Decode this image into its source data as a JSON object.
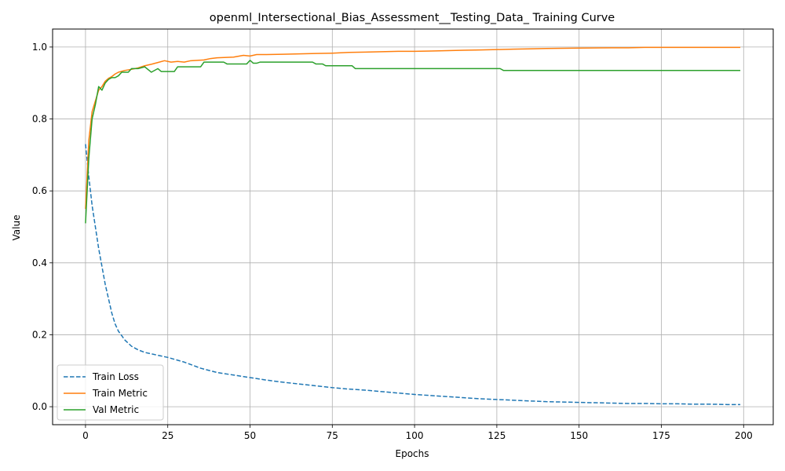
{
  "chart_data": {
    "type": "line",
    "title": "openml_Intersectional_Bias_Assessment__Testing_Data_ Training Curve",
    "xlabel": "Epochs",
    "ylabel": "Value",
    "xlim": [
      -10,
      209
    ],
    "ylim": [
      -0.05,
      1.05
    ],
    "xticks": [
      0,
      25,
      50,
      75,
      100,
      125,
      150,
      175,
      200
    ],
    "yticks": [
      0.0,
      0.2,
      0.4,
      0.6,
      0.8,
      1.0
    ],
    "grid": true,
    "legend_position": "lower-left",
    "series": [
      {
        "name": "Train Loss",
        "color": "#1f77b4",
        "dash": "dashed",
        "points": [
          [
            0,
            0.73
          ],
          [
            1,
            0.64
          ],
          [
            2,
            0.56
          ],
          [
            3,
            0.5
          ],
          [
            4,
            0.44
          ],
          [
            5,
            0.39
          ],
          [
            6,
            0.34
          ],
          [
            7,
            0.3
          ],
          [
            8,
            0.26
          ],
          [
            9,
            0.23
          ],
          [
            10,
            0.21
          ],
          [
            12,
            0.185
          ],
          [
            14,
            0.168
          ],
          [
            16,
            0.158
          ],
          [
            18,
            0.151
          ],
          [
            20,
            0.147
          ],
          [
            25,
            0.137
          ],
          [
            30,
            0.124
          ],
          [
            35,
            0.107
          ],
          [
            40,
            0.095
          ],
          [
            45,
            0.088
          ],
          [
            50,
            0.081
          ],
          [
            55,
            0.074
          ],
          [
            60,
            0.068
          ],
          [
            65,
            0.063
          ],
          [
            70,
            0.058
          ],
          [
            75,
            0.053
          ],
          [
            80,
            0.049
          ],
          [
            85,
            0.046
          ],
          [
            90,
            0.042
          ],
          [
            95,
            0.038
          ],
          [
            100,
            0.034
          ],
          [
            105,
            0.031
          ],
          [
            110,
            0.028
          ],
          [
            115,
            0.025
          ],
          [
            120,
            0.022
          ],
          [
            125,
            0.02
          ],
          [
            130,
            0.018
          ],
          [
            135,
            0.016
          ],
          [
            140,
            0.014
          ],
          [
            145,
            0.013
          ],
          [
            150,
            0.012
          ],
          [
            155,
            0.011
          ],
          [
            160,
            0.01
          ],
          [
            165,
            0.009
          ],
          [
            170,
            0.009
          ],
          [
            175,
            0.008
          ],
          [
            180,
            0.008
          ],
          [
            185,
            0.007
          ],
          [
            190,
            0.007
          ],
          [
            195,
            0.006
          ],
          [
            199,
            0.006
          ]
        ]
      },
      {
        "name": "Train Metric",
        "color": "#ff7f0e",
        "dash": "solid",
        "points": [
          [
            0,
            0.55
          ],
          [
            1,
            0.74
          ],
          [
            2,
            0.82
          ],
          [
            3,
            0.85
          ],
          [
            4,
            0.88
          ],
          [
            5,
            0.89
          ],
          [
            6,
            0.905
          ],
          [
            7,
            0.913
          ],
          [
            8,
            0.918
          ],
          [
            9,
            0.925
          ],
          [
            10,
            0.93
          ],
          [
            12,
            0.935
          ],
          [
            14,
            0.938
          ],
          [
            16,
            0.942
          ],
          [
            18,
            0.948
          ],
          [
            20,
            0.952
          ],
          [
            22,
            0.957
          ],
          [
            24,
            0.962
          ],
          [
            26,
            0.958
          ],
          [
            28,
            0.96
          ],
          [
            30,
            0.958
          ],
          [
            32,
            0.962
          ],
          [
            34,
            0.963
          ],
          [
            36,
            0.964
          ],
          [
            38,
            0.968
          ],
          [
            40,
            0.97
          ],
          [
            45,
            0.972
          ],
          [
            48,
            0.977
          ],
          [
            50,
            0.975
          ],
          [
            52,
            0.979
          ],
          [
            55,
            0.979
          ],
          [
            60,
            0.98
          ],
          [
            65,
            0.981
          ],
          [
            70,
            0.982
          ],
          [
            75,
            0.983
          ],
          [
            80,
            0.985
          ],
          [
            85,
            0.986
          ],
          [
            90,
            0.987
          ],
          [
            95,
            0.988
          ],
          [
            100,
            0.988
          ],
          [
            105,
            0.989
          ],
          [
            110,
            0.99
          ],
          [
            115,
            0.991
          ],
          [
            120,
            0.992
          ],
          [
            125,
            0.993
          ],
          [
            130,
            0.994
          ],
          [
            135,
            0.995
          ],
          [
            140,
            0.996
          ],
          [
            150,
            0.997
          ],
          [
            160,
            0.998
          ],
          [
            165,
            0.998
          ],
          [
            170,
            0.999
          ],
          [
            180,
            0.999
          ],
          [
            190,
            0.999
          ],
          [
            199,
            0.999
          ]
        ]
      },
      {
        "name": "Val Metric",
        "color": "#2ca02c",
        "dash": "solid",
        "points": [
          [
            0,
            0.51
          ],
          [
            1,
            0.69
          ],
          [
            2,
            0.8
          ],
          [
            3,
            0.84
          ],
          [
            4,
            0.89
          ],
          [
            5,
            0.88
          ],
          [
            6,
            0.9
          ],
          [
            7,
            0.91
          ],
          [
            8,
            0.915
          ],
          [
            9,
            0.915
          ],
          [
            10,
            0.92
          ],
          [
            11,
            0.93
          ],
          [
            13,
            0.93
          ],
          [
            14,
            0.94
          ],
          [
            16,
            0.94
          ],
          [
            18,
            0.945
          ],
          [
            20,
            0.93
          ],
          [
            22,
            0.94
          ],
          [
            23,
            0.932
          ],
          [
            27,
            0.932
          ],
          [
            28,
            0.945
          ],
          [
            35,
            0.945
          ],
          [
            36,
            0.958
          ],
          [
            42,
            0.958
          ],
          [
            43,
            0.953
          ],
          [
            49,
            0.953
          ],
          [
            50,
            0.963
          ],
          [
            51,
            0.955
          ],
          [
            52,
            0.955
          ],
          [
            53,
            0.958
          ],
          [
            69,
            0.958
          ],
          [
            70,
            0.953
          ],
          [
            72,
            0.953
          ],
          [
            73,
            0.948
          ],
          [
            81,
            0.948
          ],
          [
            82,
            0.94
          ],
          [
            126,
            0.94
          ],
          [
            127,
            0.935
          ],
          [
            199,
            0.935
          ]
        ]
      }
    ]
  }
}
